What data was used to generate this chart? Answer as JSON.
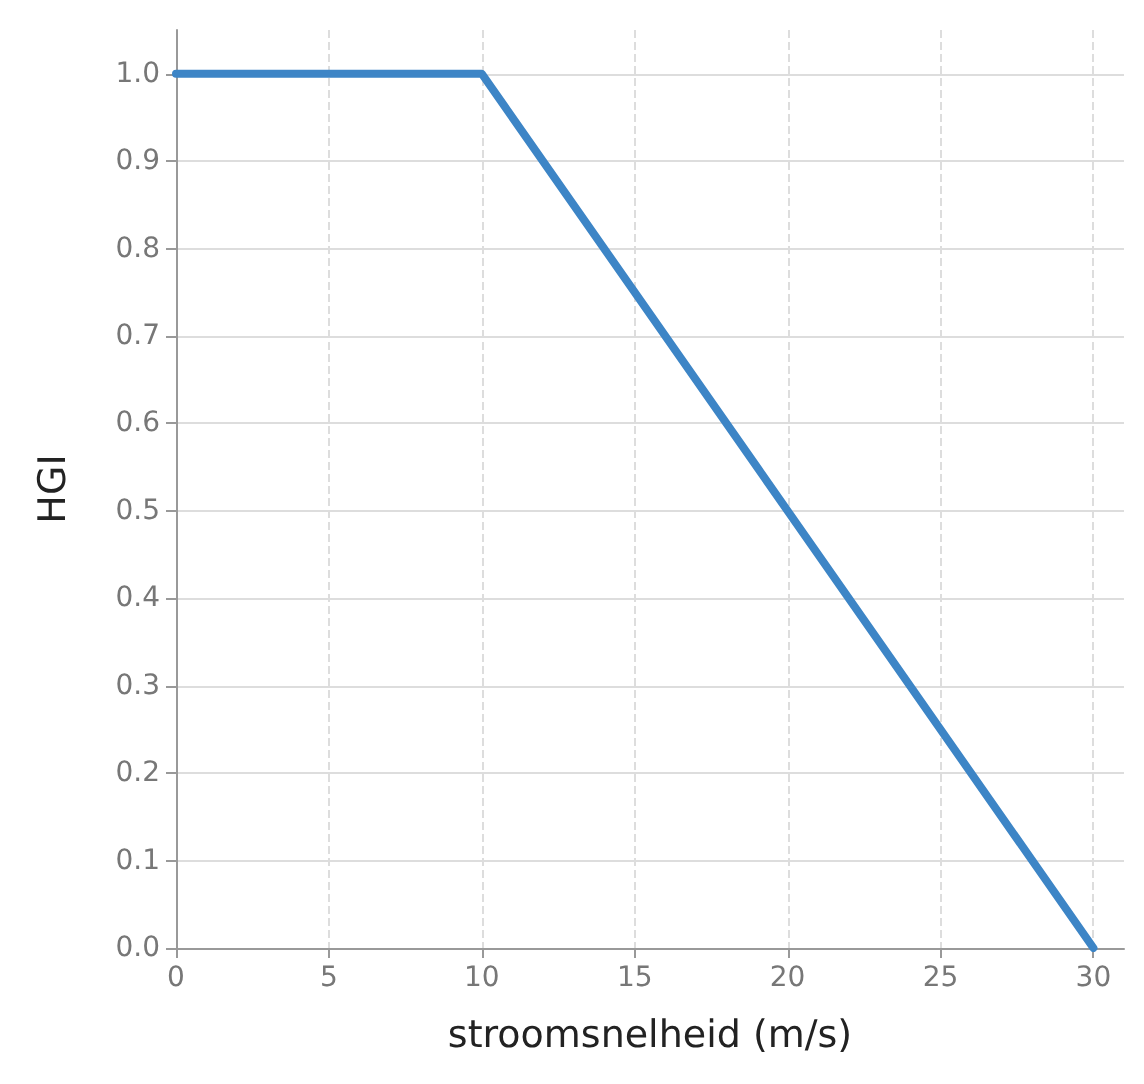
{
  "chart_data": {
    "type": "line",
    "xlabel": "stroomsnelheid (m/s)",
    "ylabel": "HGI",
    "x": [
      0,
      10,
      30
    ],
    "series": [
      {
        "color": "#3d85c6",
        "values": [
          1.0,
          1.0,
          0.0
        ]
      }
    ],
    "xlim": [
      0,
      31
    ],
    "ylim": [
      0,
      1.05
    ],
    "xticks": [
      0,
      5,
      10,
      15,
      20,
      25,
      30
    ],
    "yticks": [
      {
        "value": 0,
        "label": "0.0"
      },
      {
        "value": 0.1,
        "label": "0.1"
      },
      {
        "value": 0.2,
        "label": "0.2"
      },
      {
        "value": 0.3,
        "label": "0.3"
      },
      {
        "value": 0.4,
        "label": "0.4"
      },
      {
        "value": 0.5,
        "label": "0.5"
      },
      {
        "value": 0.6,
        "label": "0.6"
      },
      {
        "value": 0.7,
        "label": "0.7"
      },
      {
        "value": 0.8,
        "label": "0.8"
      },
      {
        "value": 0.9,
        "label": "0.9"
      },
      {
        "value": 1.0,
        "label": "1.0"
      }
    ],
    "grid": true,
    "marker": "none",
    "line_style": "solid"
  }
}
